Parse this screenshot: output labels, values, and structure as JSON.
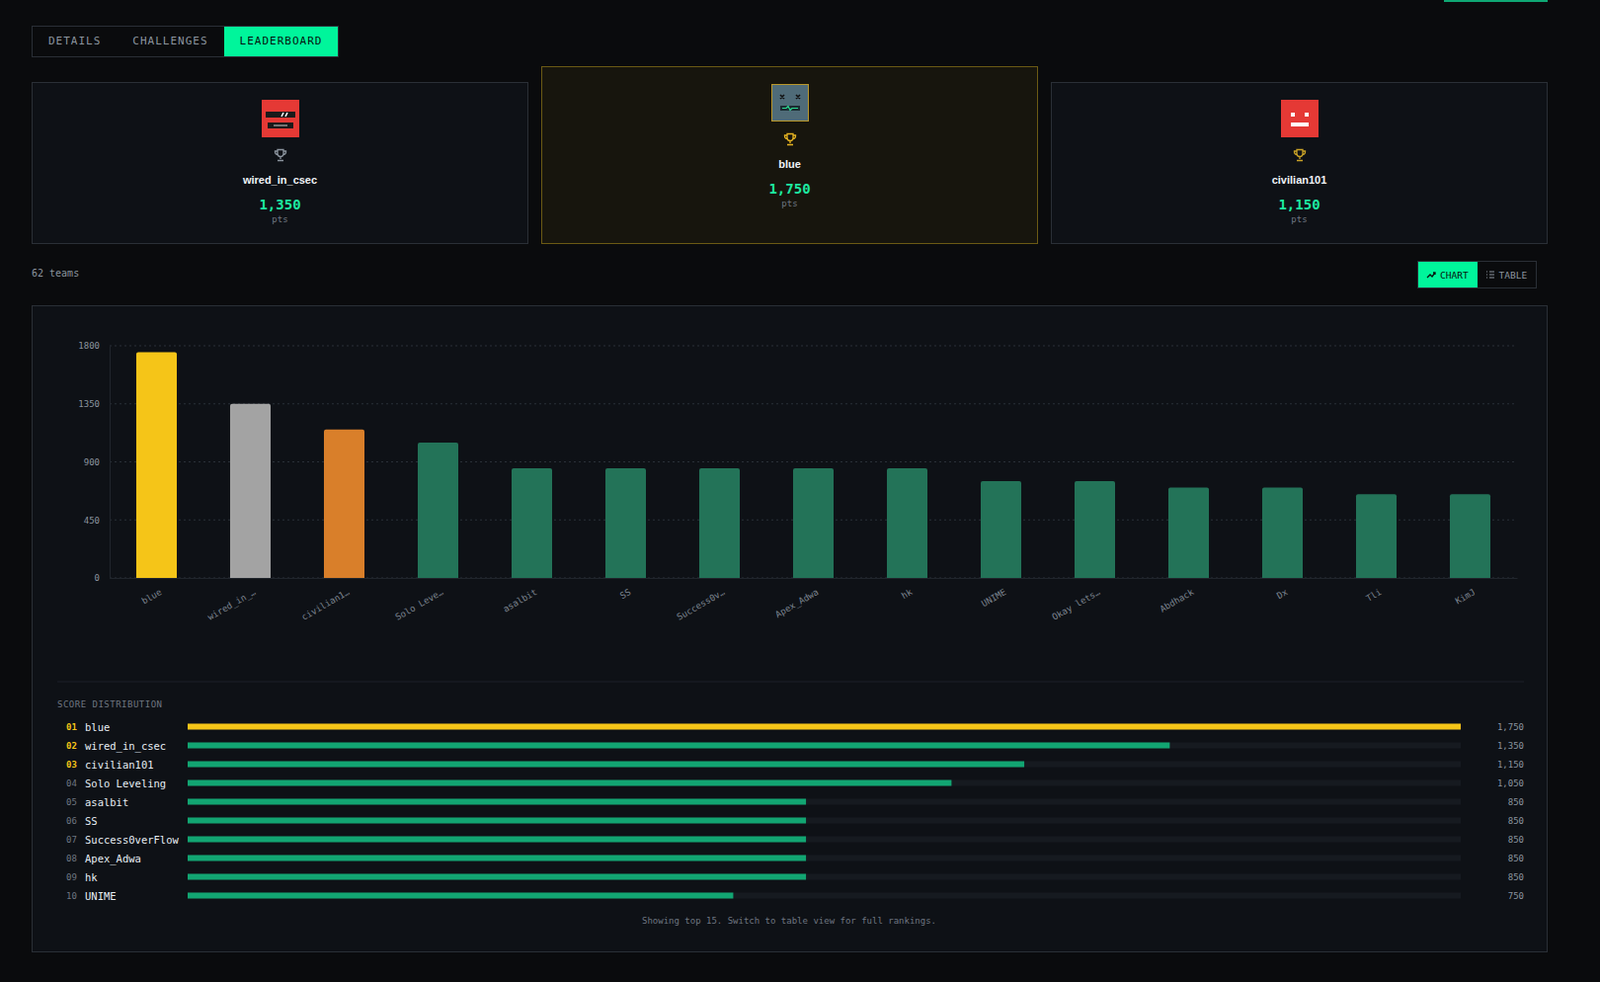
{
  "tabs": {
    "items": [
      "DETAILS",
      "CHALLENGES",
      "LEADERBOARD"
    ],
    "active": "LEADERBOARD"
  },
  "podium": [
    {
      "name": "wired_in_csec",
      "points": 1350,
      "points_label": "1,350",
      "unit": "pts",
      "place": 2
    },
    {
      "name": "blue",
      "points": 1750,
      "points_label": "1,750",
      "unit": "pts",
      "place": 1
    },
    {
      "name": "civilian101",
      "points": 1150,
      "points_label": "1,150",
      "unit": "pts",
      "place": 3
    }
  ],
  "team_count": "62 teams",
  "view_toggle": {
    "items": [
      "CHART",
      "TABLE"
    ],
    "active": "CHART"
  },
  "chart_data": {
    "type": "bar",
    "categories": [
      "blue",
      "wired_in_…",
      "civilian1…",
      "Solo Leve…",
      "asalbit",
      "SS",
      "Success0v…",
      "Apex_Adwa",
      "hk",
      "UNIME",
      "Okay lets…",
      "Abdhack",
      "Dx",
      "Tli",
      "KimJ"
    ],
    "values": [
      1750,
      1350,
      1150,
      1050,
      850,
      850,
      850,
      850,
      850,
      750,
      750,
      700,
      700,
      650,
      650
    ],
    "colors": [
      "#f5c518",
      "#a3a3a3",
      "#d97f2a",
      "#237358",
      "#237358",
      "#237358",
      "#237358",
      "#237358",
      "#237358",
      "#237358",
      "#237358",
      "#237358",
      "#237358",
      "#237358",
      "#237358"
    ],
    "ylim": [
      0,
      1800
    ],
    "yticks": [
      0,
      450,
      900,
      1350,
      1800
    ],
    "grid": true
  },
  "score_distribution": {
    "title": "SCORE DISTRIBUTION",
    "ranks": [
      "01",
      "02",
      "03",
      "04",
      "05",
      "06",
      "07",
      "08",
      "09",
      "10"
    ],
    "names": [
      "blue",
      "wired_in_csec",
      "civilian101",
      "Solo Leveling",
      "asalbit",
      "SS",
      "Success0verFlow",
      "Apex_Adwa",
      "hk",
      "UNIME"
    ],
    "values": [
      1750,
      1350,
      1150,
      1050,
      850,
      850,
      850,
      850,
      850,
      750
    ],
    "value_labels": [
      "1,750",
      "1,350",
      "1,150",
      "1,050",
      "850",
      "850",
      "850",
      "850",
      "850",
      "750"
    ],
    "xlim": [
      0,
      1750
    ],
    "colors": [
      "#f5c518",
      "#12a572",
      "#12a572",
      "#12a572",
      "#12a572",
      "#12a572",
      "#12a572",
      "#12a572",
      "#12a572",
      "#12a572"
    ]
  },
  "footer": "Showing top 15. Switch to table view for full rankings."
}
